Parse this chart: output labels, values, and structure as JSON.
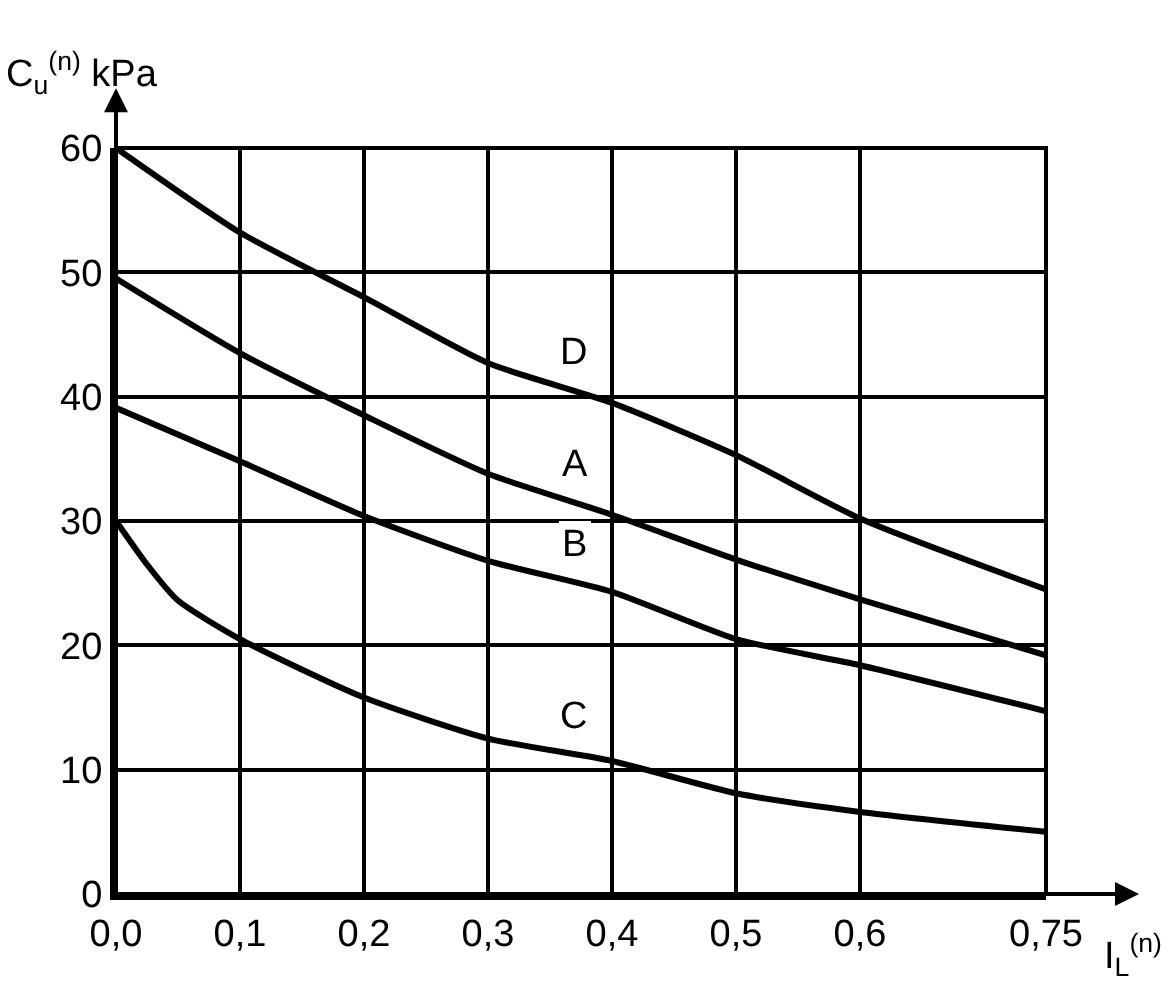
{
  "chart_data": {
    "type": "line",
    "xlabel": "I$_{L}$$^{(n)}$",
    "ylabel": "C$_{u}$$^{(n)}$ kPa",
    "x": [
      0,
      0.1,
      0.2,
      0.3,
      0.4,
      0.5,
      0.6,
      0.75
    ],
    "series": [
      {
        "name": "D",
        "color": "#000000",
        "values": [
          60,
          53.2,
          48,
          42.7,
          39.5,
          35.3,
          30.2,
          24.5
        ]
      },
      {
        "name": "A",
        "color": "#000000",
        "values": [
          49.5,
          43.5,
          38.5,
          33.8,
          30.5,
          26.9,
          23.7,
          19.2
        ]
      },
      {
        "name": "B",
        "color": "#000000",
        "values": [
          39.1,
          34.8,
          30.4,
          26.8,
          24.3,
          20.5,
          18.4,
          14.7
        ]
      },
      {
        "name": "C",
        "color": "#000000",
        "x": [
          0,
          0.025,
          0.05,
          0.1,
          0.2,
          0.3,
          0.4,
          0.5,
          0.6,
          0.75
        ],
        "values": [
          30,
          26.5,
          23.6,
          20.5,
          15.8,
          12.5,
          10.7,
          8.1,
          6.6,
          5.0
        ]
      }
    ],
    "xlim": [
      0,
      0.75
    ],
    "ylim": [
      0,
      60
    ],
    "xticks": [
      {
        "value": 0,
        "label": "0,0"
      },
      {
        "value": 0.1,
        "label": "0,1"
      },
      {
        "value": 0.2,
        "label": "0,2"
      },
      {
        "value": 0.3,
        "label": "0,3"
      },
      {
        "value": 0.4,
        "label": "0,4"
      },
      {
        "value": 0.5,
        "label": "0,5"
      },
      {
        "value": 0.6,
        "label": "0,6"
      },
      {
        "value": 0.75,
        "label": "0,75"
      }
    ],
    "yticks": [
      0,
      10,
      20,
      30,
      40,
      50,
      60
    ],
    "grid": true,
    "legend": false,
    "line_style": "solid",
    "marker": "none"
  }
}
